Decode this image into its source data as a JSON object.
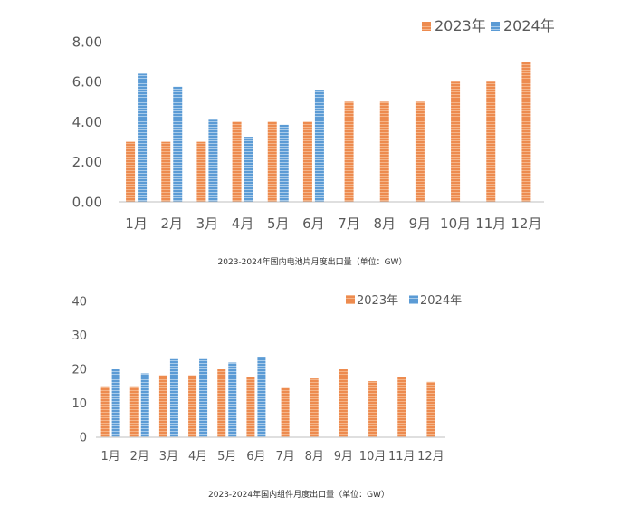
{
  "chart_data": [
    {
      "type": "bar",
      "title": "2023-2024年国内电池片月度出口量（单位：GW）",
      "categories": [
        "1月",
        "2月",
        "3月",
        "4月",
        "5月",
        "6月",
        "7月",
        "8月",
        "9月",
        "10月",
        "11月",
        "12月"
      ],
      "series": [
        {
          "name": "2023年",
          "color": "#ED8B4F",
          "values": [
            3.0,
            3.0,
            3.0,
            4.0,
            4.0,
            4.0,
            5.0,
            5.0,
            5.0,
            6.0,
            6.0,
            7.0
          ]
        },
        {
          "name": "2024年",
          "color": "#5B9BD5",
          "values": [
            6.4,
            5.75,
            4.1,
            3.25,
            3.85,
            5.6,
            null,
            null,
            null,
            null,
            null,
            null
          ]
        }
      ],
      "ylim": [
        0,
        8
      ],
      "yticks": [
        "0.00",
        "2.00",
        "4.00",
        "6.00",
        "8.00"
      ],
      "xlabel": "",
      "ylabel": "",
      "legend": "top-right",
      "grid": false
    },
    {
      "type": "bar",
      "title": "2023-2024年国内组件月度出口量（单位：GW）",
      "categories": [
        "1月",
        "2月",
        "3月",
        "4月",
        "5月",
        "6月",
        "7月",
        "8月",
        "9月",
        "10月",
        "11月",
        "12月"
      ],
      "series": [
        {
          "name": "2023年",
          "color": "#ED8B4F",
          "values": [
            15,
            15,
            18.2,
            18.2,
            20,
            17.8,
            14.5,
            17.3,
            20,
            16.5,
            17.8,
            16.3
          ]
        },
        {
          "name": "2024年",
          "color": "#5B9BD5",
          "values": [
            20,
            18.8,
            23,
            23,
            22,
            23.7,
            null,
            null,
            null,
            null,
            null,
            null
          ]
        }
      ],
      "ylim": [
        0,
        40
      ],
      "yticks": [
        "0",
        "10",
        "20",
        "30",
        "40"
      ],
      "xlabel": "",
      "ylabel": "",
      "legend": "top-right",
      "grid": false
    }
  ]
}
